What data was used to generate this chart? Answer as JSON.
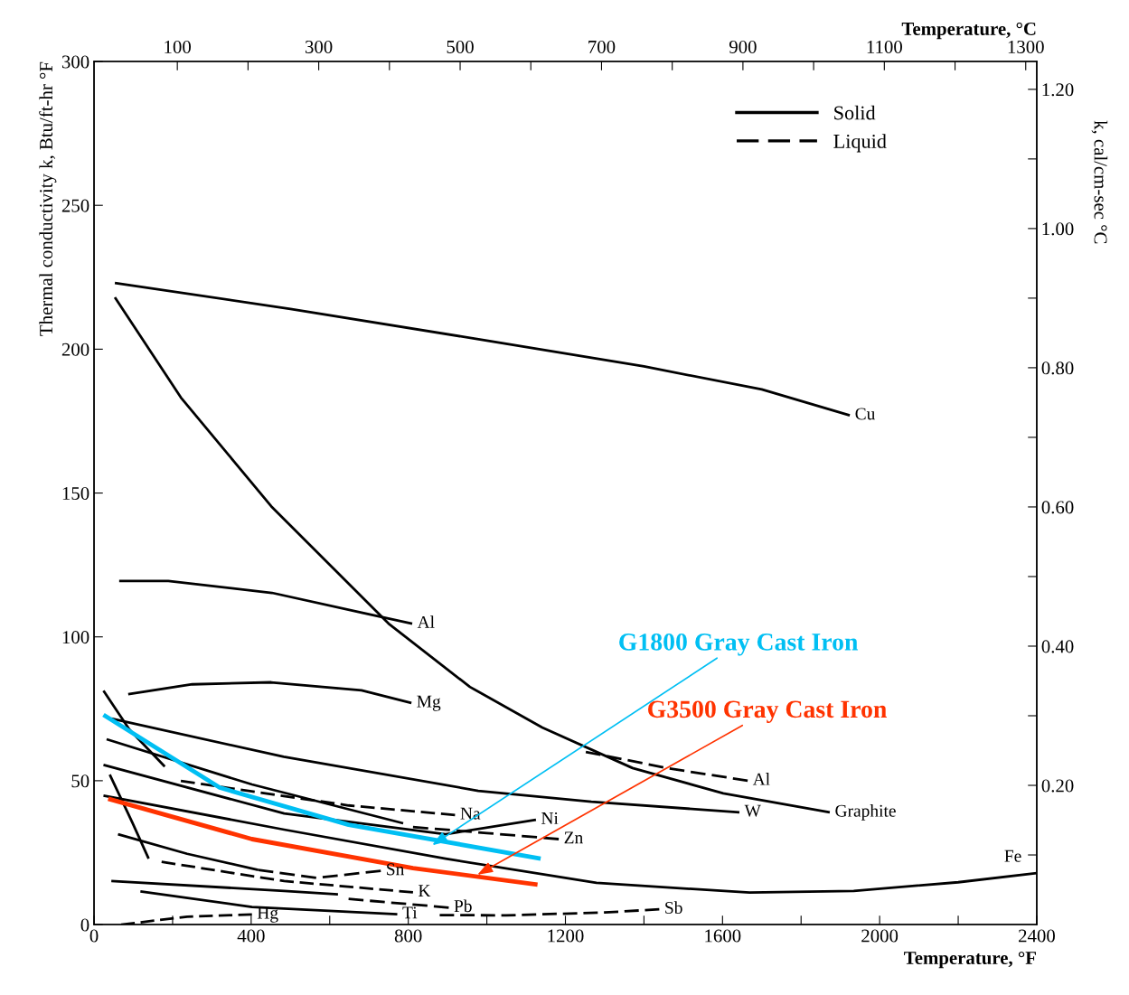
{
  "chart_data": {
    "type": "line",
    "xlabel": "Temperature, °F",
    "ylabel": "Thermal conductivity k, Btu/ft-hr °F",
    "y2label": "k, cal/cm-sec °C",
    "x2label": "Temperature, °C",
    "xlim": [
      0,
      2400
    ],
    "xticks": [
      0,
      {
        "value": 200,
        "label": null
      },
      400,
      {
        "value": 600,
        "label": null
      },
      800,
      {
        "value": 1000,
        "label": null
      },
      1200,
      {
        "value": 1400,
        "label": null
      },
      1600,
      {
        "value": 1800,
        "label": null
      },
      2000,
      {
        "value": 2200,
        "label": null
      },
      2400
    ],
    "ylim": [
      0,
      300
    ],
    "yticks": [
      0,
      50,
      100,
      150,
      200,
      250,
      300
    ],
    "y2lim": [
      0,
      1.24
    ],
    "y2ticks": [
      {
        "value": 0.1,
        "label": null
      },
      {
        "value": 0.2,
        "label": "0.20"
      },
      {
        "value": 0.3,
        "label": null
      },
      {
        "value": 0.4,
        "label": "0.40"
      },
      {
        "value": 0.5,
        "label": null
      },
      {
        "value": 0.6,
        "label": "0.60"
      },
      {
        "value": 0.7,
        "label": null
      },
      {
        "value": 0.8,
        "label": "0.80"
      },
      {
        "value": 0.9,
        "label": null
      },
      {
        "value": 1.0,
        "label": "1.00"
      },
      {
        "value": 1.1,
        "label": null
      },
      {
        "value": 1.2,
        "label": "1.20"
      }
    ],
    "x2lim": [
      -17.8,
      1315.6
    ],
    "x2ticks": [
      100,
      {
        "value": 200,
        "label": null
      },
      300,
      {
        "value": 400,
        "label": null
      },
      500,
      {
        "value": 600,
        "label": null
      },
      700,
      {
        "value": 800,
        "label": null
      },
      900,
      {
        "value": 1000,
        "label": null
      },
      1100,
      {
        "value": 1200,
        "label": null
      },
      1300
    ],
    "grid": false,
    "legend": "top right",
    "marker": "none",
    "series": [
      {
        "name": "Solid",
        "color": "#000000",
        "line_style": "solid"
      },
      {
        "name": "Liquid",
        "color": "#000000",
        "line_style": "dashed"
      },
      {
        "name": "Cu",
        "color": "#000000",
        "line_style": "solid",
        "x": [
          53,
          500,
          1000,
          1400,
          1700,
          1924
        ],
        "values": [
          223,
          214,
          203,
          194,
          186,
          177
        ]
      },
      {
        "name": "Al",
        "color": "#000000",
        "line_style": "solid",
        "x": [
          64,
          189,
          453,
          681,
          810
        ],
        "values": [
          119.4,
          119.4,
          115.3,
          108.4,
          104.6
        ]
      },
      {
        "name": "Al",
        "color": "#000000",
        "line_style": "dashed",
        "x": [
          1252,
          1463,
          1664
        ],
        "values": [
          60,
          54.3,
          50
        ]
      },
      {
        "name": "Mg",
        "color": "#000000",
        "line_style": "solid",
        "x": [
          87,
          250,
          451,
          681,
          808
        ],
        "values": [
          80.1,
          83.5,
          84.2,
          81.4,
          77
        ]
      },
      {
        "name": "W",
        "color": "#000000",
        "line_style": "solid",
        "x": [
          44,
          483,
          978,
          1266,
          1643
        ],
        "values": [
          71.6,
          58.3,
          46.5,
          42.7,
          39
        ]
      },
      {
        "color": "#000000",
        "line_style": "solid",
        "x": [
          24,
          90,
          180
        ],
        "values": [
          81.3,
          67.8,
          54.9
        ]
      },
      {
        "name": "Na",
        "color": "#000000",
        "line_style": "dashed",
        "x": [
          221,
          648,
          919
        ],
        "values": [
          49.9,
          41.4,
          38.1
        ]
      },
      {
        "name": "Ni",
        "color": "#000000",
        "line_style": "solid",
        "x": [
          24,
          484,
          895,
          1125
        ],
        "values": [
          55.5,
          38.6,
          31.4,
          36.4
        ]
      },
      {
        "color": "#000000",
        "line_style": "solid",
        "x": [
          32,
          402,
          787
        ],
        "values": [
          64.4,
          48.7,
          35.2
        ]
      },
      {
        "name": "Zn",
        "color": "#000000",
        "line_style": "dashed",
        "x": [
          812,
          1000,
          1183
        ],
        "values": [
          33.9,
          31.8,
          29.7
        ]
      },
      {
        "name": "Fe",
        "color": "#000000",
        "line_style": "solid",
        "x": [
          24,
          484,
          895,
          1279,
          1669,
          1934,
          2200,
          2400
        ],
        "values": [
          44.8,
          33,
          22.9,
          14.5,
          11.1,
          11.7,
          14.7,
          17.9
        ]
      },
      {
        "color": "#000000",
        "line_style": "solid",
        "x": [
          61,
          237,
          418
        ],
        "values": [
          31.4,
          24.6,
          19
        ]
      },
      {
        "name": "Sn",
        "color": "#000000",
        "line_style": "dashed",
        "x": [
          418,
          566,
          730
        ],
        "values": [
          19,
          16.2,
          18.7
        ]
      },
      {
        "color": "#000000",
        "line_style": "solid",
        "x": [
          40,
          98,
          139
        ],
        "values": [
          52.1,
          35.3,
          22.9
        ]
      },
      {
        "name": "K",
        "color": "#000000",
        "line_style": "dashed",
        "x": [
          172,
          484,
          812
        ],
        "values": [
          21.8,
          15.1,
          11.2
        ]
      },
      {
        "color": "#000000",
        "line_style": "solid",
        "x": [
          44,
          484,
          621
        ],
        "values": [
          15.1,
          11.7,
          10.5
        ]
      },
      {
        "name": "Pb",
        "color": "#000000",
        "line_style": "dashed",
        "x": [
          648,
          903
        ],
        "values": [
          8.9,
          5.9
        ]
      },
      {
        "name": "Ti",
        "color": "#000000",
        "line_style": "solid",
        "x": [
          118,
          402,
          772
        ],
        "values": [
          11.5,
          6.1,
          3.6
        ]
      },
      {
        "name": "Sb",
        "color": "#000000",
        "line_style": "dashed",
        "x": [
          880,
          1049,
          1300,
          1439
        ],
        "values": [
          3.3,
          3.2,
          4.2,
          5.3
        ]
      },
      {
        "name": "Hg",
        "color": "#000000",
        "line_style": "dashed",
        "x": [
          69,
          237,
          402
        ],
        "values": [
          0,
          2.7,
          3.5
        ]
      },
      {
        "name": "Graphite",
        "color": "#000000",
        "line_style": "solid",
        "x": [
          53,
          221,
          451,
          750,
          957,
          1141,
          1371,
          1602,
          1873
        ],
        "values": [
          218,
          183.2,
          145.4,
          104.6,
          82.6,
          68.5,
          54.4,
          45.6,
          39
        ]
      },
      {
        "color": "#00bff3",
        "line_style": "solid",
        "x": [
          24,
          320,
          648,
          1137
        ],
        "values": [
          72.9,
          47.6,
          34.7,
          22.9
        ]
      },
      {
        "color": "#ff3300",
        "line_style": "solid",
        "x": [
          36,
          402,
          812,
          1129
        ],
        "values": [
          43.7,
          29.7,
          19.6,
          13.9
        ]
      }
    ],
    "annotations": [
      {
        "text": "G1800 Gray Cast Iron",
        "x": 861,
        "y": 27.6
      },
      {
        "text": "G3500 Gray Cast Iron",
        "x": 976,
        "y": 17.3
      }
    ]
  }
}
